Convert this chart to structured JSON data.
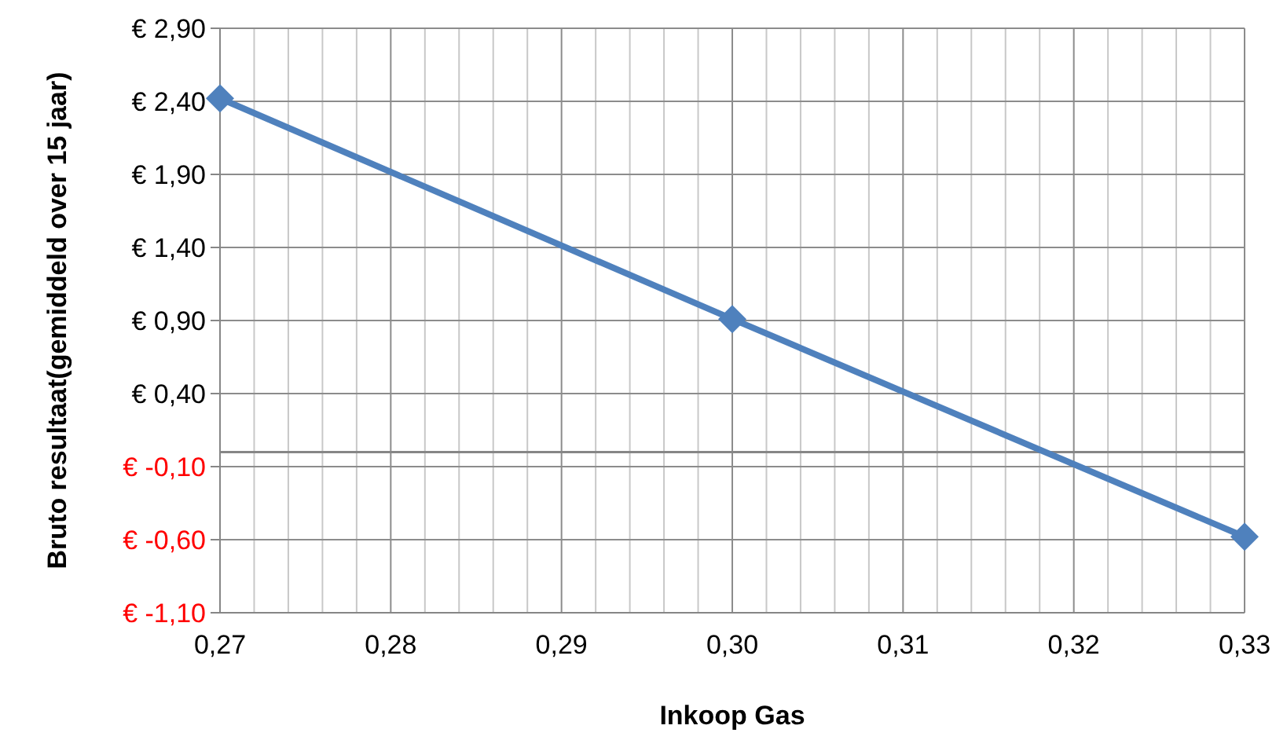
{
  "chart_data": {
    "type": "line",
    "xlabel": "Inkoop Gas",
    "ylabel": "Bruto resultaat(gemiddeld over 15 jaar)",
    "x": [
      0.27,
      0.3,
      0.33
    ],
    "series": [
      {
        "color": "#4f81bd",
        "values": [
          2.42,
          0.91,
          -0.58
        ]
      }
    ],
    "marker": "diamond",
    "line_style": "solid",
    "grid": true,
    "xlim": [
      0.27,
      0.33
    ],
    "xticks": [
      {
        "value": 0.27,
        "label": "0,27"
      },
      {
        "value": 0.272,
        "label": null
      },
      {
        "value": 0.274,
        "label": null
      },
      {
        "value": 0.276,
        "label": null
      },
      {
        "value": 0.278,
        "label": null
      },
      {
        "value": 0.28,
        "label": "0,28"
      },
      {
        "value": 0.282,
        "label": null
      },
      {
        "value": 0.284,
        "label": null
      },
      {
        "value": 0.286,
        "label": null
      },
      {
        "value": 0.288,
        "label": null
      },
      {
        "value": 0.29,
        "label": "0,29"
      },
      {
        "value": 0.292,
        "label": null
      },
      {
        "value": 0.294,
        "label": null
      },
      {
        "value": 0.296,
        "label": null
      },
      {
        "value": 0.298,
        "label": null
      },
      {
        "value": 0.3,
        "label": "0,30"
      },
      {
        "value": 0.302,
        "label": null
      },
      {
        "value": 0.304,
        "label": null
      },
      {
        "value": 0.306,
        "label": null
      },
      {
        "value": 0.308,
        "label": null
      },
      {
        "value": 0.31,
        "label": "0,31"
      },
      {
        "value": 0.312,
        "label": null
      },
      {
        "value": 0.314,
        "label": null
      },
      {
        "value": 0.316,
        "label": null
      },
      {
        "value": 0.318,
        "label": null
      },
      {
        "value": 0.32,
        "label": "0,32"
      },
      {
        "value": 0.322,
        "label": null
      },
      {
        "value": 0.324,
        "label": null
      },
      {
        "value": 0.326,
        "label": null
      },
      {
        "value": 0.328,
        "label": null
      },
      {
        "value": 0.33,
        "label": "0,33"
      }
    ],
    "ylim": [
      -1.1,
      2.9
    ],
    "yticks": [
      {
        "value": -1.1,
        "label": "€ -1,10"
      },
      {
        "value": -0.6,
        "label": "€ -0,60"
      },
      {
        "value": -0.1,
        "label": "€ -0,10"
      },
      {
        "value": 0.4,
        "label": "€ 0,40"
      },
      {
        "value": 0.9,
        "label": "€ 0,90"
      },
      {
        "value": 1.4,
        "label": "€ 1,40"
      },
      {
        "value": 1.9,
        "label": "€ 1,90"
      },
      {
        "value": 2.4,
        "label": "€ 2,40"
      },
      {
        "value": 2.9,
        "label": "€ 2,90"
      }
    ],
    "ref_lines": [
      {
        "axis": "y",
        "value": 0,
        "color": "#868686"
      }
    ]
  }
}
